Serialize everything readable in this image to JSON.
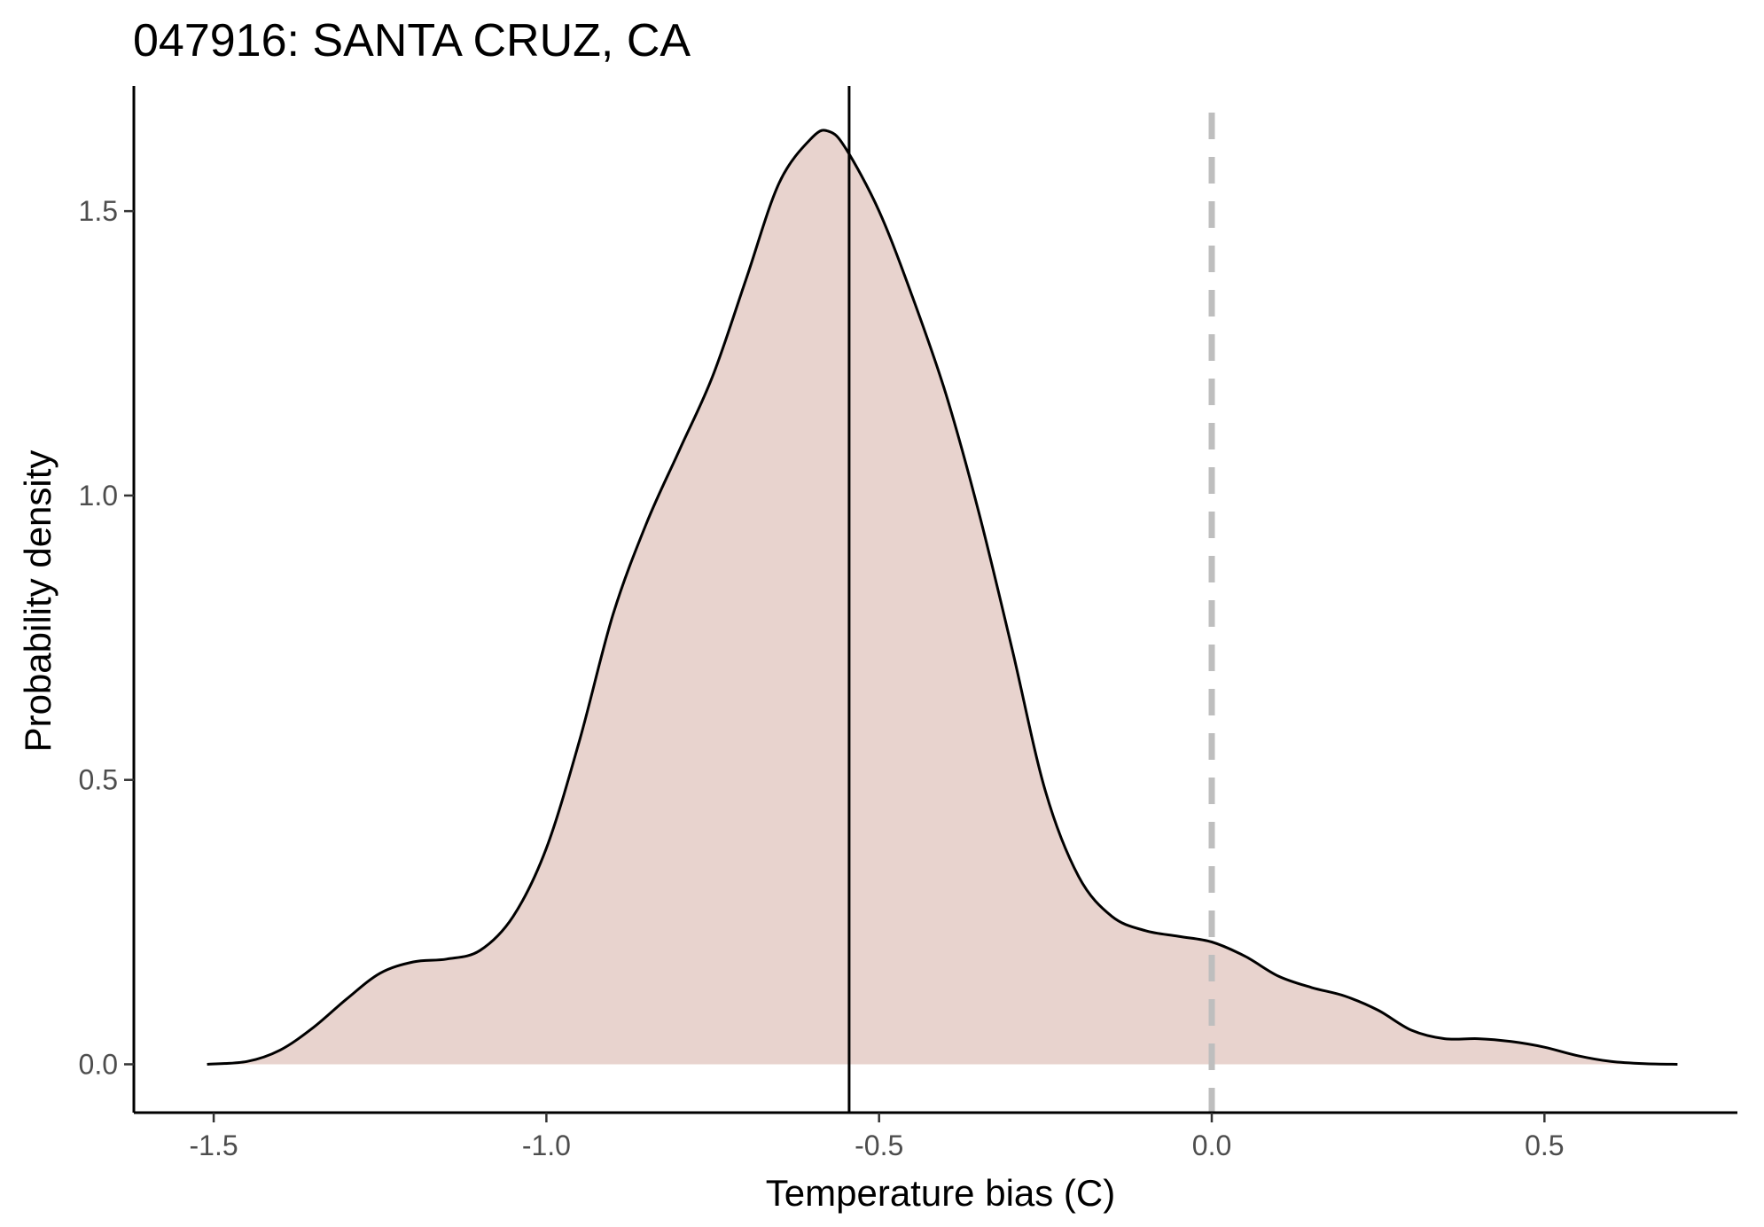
{
  "chart_data": {
    "type": "area",
    "title": "047916: SANTA CRUZ, CA",
    "xlabel": "Temperature bias (C)",
    "ylabel": "Probability density",
    "xlim": [
      -1.62,
      0.79
    ],
    "ylim": [
      -0.085,
      1.72
    ],
    "x_ticks": [
      -1.5,
      -1.0,
      -0.5,
      0.0,
      0.5
    ],
    "x_tick_labels": [
      "-1.5",
      "-1.0",
      "-0.5",
      "0.0",
      "0.5"
    ],
    "y_ticks": [
      0.0,
      0.5,
      1.0,
      1.5
    ],
    "y_tick_labels": [
      "0.0",
      "0.5",
      "1.0",
      "1.5"
    ],
    "grid": false,
    "legend": "none",
    "colors": {
      "fill": "#e8d3ce",
      "line": "#000000",
      "mean_line": "#000000",
      "zero_line": "#bebebe"
    },
    "mean_line_x": -0.545,
    "reference_line_x": 0.0,
    "series": [
      {
        "x": [
          -1.51,
          -1.45,
          -1.4,
          -1.35,
          -1.3,
          -1.25,
          -1.2,
          -1.15,
          -1.1,
          -1.05,
          -1.0,
          -0.95,
          -0.9,
          -0.85,
          -0.8,
          -0.75,
          -0.7,
          -0.65,
          -0.6,
          -0.575,
          -0.55,
          -0.5,
          -0.45,
          -0.4,
          -0.35,
          -0.3,
          -0.25,
          -0.2,
          -0.15,
          -0.1,
          -0.05,
          0.0,
          0.05,
          0.1,
          0.15,
          0.2,
          0.25,
          0.3,
          0.35,
          0.4,
          0.45,
          0.5,
          0.55,
          0.6,
          0.65,
          0.7
        ],
        "y": [
          0.0,
          0.005,
          0.025,
          0.065,
          0.115,
          0.16,
          0.18,
          0.185,
          0.2,
          0.26,
          0.38,
          0.57,
          0.79,
          0.95,
          1.08,
          1.21,
          1.38,
          1.55,
          1.63,
          1.64,
          1.61,
          1.5,
          1.35,
          1.18,
          0.97,
          0.73,
          0.48,
          0.33,
          0.26,
          0.235,
          0.225,
          0.215,
          0.19,
          0.155,
          0.135,
          0.12,
          0.095,
          0.06,
          0.045,
          0.045,
          0.04,
          0.03,
          0.015,
          0.005,
          0.001,
          0.0
        ]
      }
    ]
  }
}
